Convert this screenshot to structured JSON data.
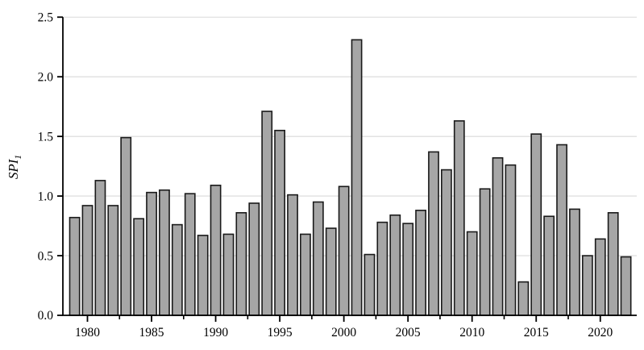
{
  "figure": {
    "background": "#ffffff"
  },
  "chart_data": {
    "type": "bar",
    "title": "",
    "xlabel": "",
    "ylabel": "SPI",
    "ylabel_subscript": "1",
    "x": [
      1979,
      1980,
      1981,
      1982,
      1983,
      1984,
      1985,
      1986,
      1987,
      1988,
      1989,
      1990,
      1991,
      1992,
      1993,
      1994,
      1995,
      1996,
      1997,
      1998,
      1999,
      2000,
      2001,
      2002,
      2003,
      2004,
      2005,
      2006,
      2007,
      2008,
      2009,
      2010,
      2011,
      2012,
      2013,
      2014,
      2015,
      2016,
      2017,
      2018,
      2019,
      2020,
      2021,
      2022
    ],
    "values": [
      0.82,
      0.92,
      1.13,
      0.92,
      1.49,
      0.81,
      1.03,
      1.05,
      0.76,
      1.02,
      0.67,
      1.09,
      0.68,
      0.86,
      0.94,
      1.71,
      1.55,
      1.01,
      0.68,
      0.95,
      0.73,
      1.08,
      2.31,
      0.51,
      0.78,
      0.84,
      0.77,
      0.88,
      1.37,
      1.22,
      1.63,
      0.7,
      1.06,
      1.32,
      1.26,
      0.28,
      1.52,
      0.83,
      1.43,
      0.89,
      0.5,
      0.64,
      0.86,
      0.49
    ],
    "ylim": [
      0,
      2.5
    ],
    "ytick_values": [
      0.0,
      0.5,
      1.0,
      1.5,
      2.0,
      2.5
    ],
    "ytick_labels": [
      "0.0",
      "0.5",
      "1.0",
      "1.5",
      "2.0",
      "2.5"
    ],
    "xtick_major": [
      1980,
      1985,
      1990,
      1995,
      2000,
      2005,
      2010,
      2015,
      2020
    ],
    "xtick_minor": [
      1982.5,
      1987.5,
      1992.5,
      1997.5,
      2002.5,
      2007.5,
      2012.5,
      2017.5
    ],
    "grid": "horizontal",
    "legend": "none",
    "colors": {
      "bar_fill": "#a6a6a6",
      "bar_stroke": "#1a1a1a",
      "gridline": "#d9d9d9",
      "axis": "#000000",
      "text": "#000000"
    }
  }
}
